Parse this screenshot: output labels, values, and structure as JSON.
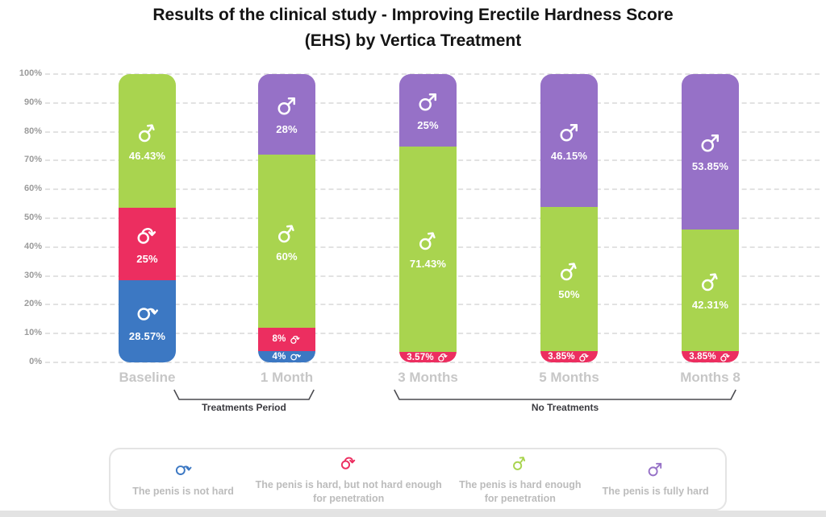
{
  "title": "Results of the clinical study - Improving Erectile Hardness Score (EHS) by Vertica Treatment",
  "title_lines": [
    "Results of the clinical study - Improving Erectile Hardness Score",
    "(EHS) by Vertica Treatment"
  ],
  "y_axis": {
    "ticks": [
      "0%",
      "10%",
      "20%",
      "30%",
      "40%",
      "50%",
      "60%",
      "70%",
      "80%",
      "90%",
      "100%"
    ],
    "min": 0,
    "max": 100
  },
  "chart_data": {
    "type": "bar",
    "stacked": true,
    "percent": true,
    "title": "Results of the clinical study - Improving Erectile Hardness Score (EHS) by Vertica Treatment",
    "categories": [
      "Baseline",
      "1 Month",
      "3 Months",
      "5 Months",
      "Months 8"
    ],
    "series": [
      {
        "name": "not_hard",
        "legend": "The penis is not hard",
        "color": "#3c78c3",
        "icon": "mars-down-icon",
        "values": [
          28.57,
          4,
          0,
          0,
          0
        ],
        "labels": [
          "28.57%",
          "4%",
          "",
          "",
          ""
        ]
      },
      {
        "name": "hard_not_enough",
        "legend": "The penis is hard, but not hard enough for penetration",
        "color": "#ec2e60",
        "icon": "mars-curl-icon",
        "values": [
          25,
          8,
          3.57,
          3.85,
          3.85
        ],
        "labels": [
          "25%",
          "8%",
          "3.57%",
          "3.85%",
          "3.85%"
        ]
      },
      {
        "name": "hard_enough",
        "legend": "The penis is hard enough for penetration",
        "color": "#a9d44f",
        "icon": "mars-curve-icon",
        "values": [
          46.43,
          60,
          71.43,
          50,
          42.31
        ],
        "labels": [
          "46.43%",
          "60%",
          "71.43%",
          "50%",
          "42.31%"
        ]
      },
      {
        "name": "fully_hard",
        "legend": "The penis is fully hard",
        "color": "#9671c7",
        "icon": "mars-icon",
        "values": [
          0,
          28,
          25,
          46.15,
          53.85
        ],
        "labels": [
          "",
          "28%",
          "25%",
          "46.15%",
          "53.85%"
        ]
      }
    ],
    "ylim": [
      0,
      100
    ],
    "grid": "horizontal-dashed",
    "legend_position": "bottom"
  },
  "annotations": [
    {
      "label": "Treatments Period",
      "span": [
        "Baseline",
        "1 Month"
      ]
    },
    {
      "label": "No Treatments",
      "span": [
        "3 Months",
        "Months 8"
      ]
    }
  ]
}
